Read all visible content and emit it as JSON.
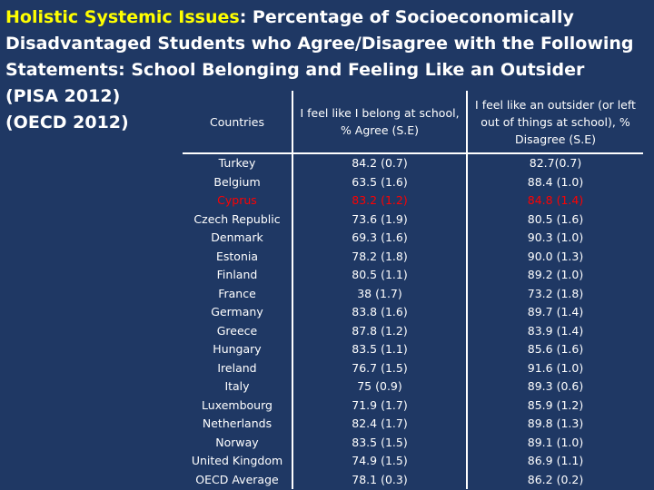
{
  "title": {
    "highlight": "Holistic Systemic Issues",
    "rest": ": Percentage of Socioeconomically Disadvantaged Students who Agree/Disagree with the Following Statements:  School Belonging and Feeling Like an Outsider (PISA 2012)",
    "source": "(OECD 2012)"
  },
  "table": {
    "headers": {
      "country": "Countries",
      "belong": "I feel like I belong at school, %   Agree (S.E)",
      "outsider": "I feel like an outsider (or left out of things at school), %   Disagree (S.E)"
    },
    "rows": [
      {
        "country": "Turkey",
        "belong": "84.2 (0.7)",
        "outsider": "82.7(0.7)"
      },
      {
        "country": "Belgium",
        "belong": "63.5 (1.6)",
        "outsider": "88.4 (1.0)"
      },
      {
        "country": "Cyprus",
        "belong": "83.2 (1.2)",
        "outsider": "84.8 (1.4)",
        "highlight": true
      },
      {
        "country": "Czech Republic",
        "belong": "73.6 (1.9)",
        "outsider": "80.5 (1.6)"
      },
      {
        "country": "Denmark",
        "belong": "69.3 (1.6)",
        "outsider": "90.3 (1.0)"
      },
      {
        "country": "Estonia",
        "belong": "78.2 (1.8)",
        "outsider": "90.0 (1.3)"
      },
      {
        "country": "Finland",
        "belong": "80.5 (1.1)",
        "outsider": "89.2 (1.0)"
      },
      {
        "country": "France",
        "belong": "38 (1.7)",
        "outsider": "73.2 (1.8)"
      },
      {
        "country": "Germany",
        "belong": "83.8 (1.6)",
        "outsider": "89.7 (1.4)"
      },
      {
        "country": "Greece",
        "belong": "87.8 (1.2)",
        "outsider": "83.9 (1.4)"
      },
      {
        "country": "Hungary",
        "belong": "83.5 (1.1)",
        "outsider": "85.6 (1.6)"
      },
      {
        "country": "Ireland",
        "belong": "76.7 (1.5)",
        "outsider": "91.6 (1.0)"
      },
      {
        "country": "Italy",
        "belong": "75 (0.9)",
        "outsider": "89.3 (0.6)"
      },
      {
        "country": "Luxembourg",
        "belong": "71.9 (1.7)",
        "outsider": "85.9 (1.2)"
      },
      {
        "country": "Netherlands",
        "belong": "82.4 (1.7)",
        "outsider": "89.8 (1.3)"
      },
      {
        "country": "Norway",
        "belong": "83.5 (1.5)",
        "outsider": "89.1 (1.0)"
      },
      {
        "country": "United Kingdom",
        "belong": "74.9 (1.5)",
        "outsider": "86.9 (1.1)"
      },
      {
        "country": "OECD Average",
        "belong": "78.1 (0.3)",
        "outsider": "86.2 (0.2)"
      }
    ]
  }
}
